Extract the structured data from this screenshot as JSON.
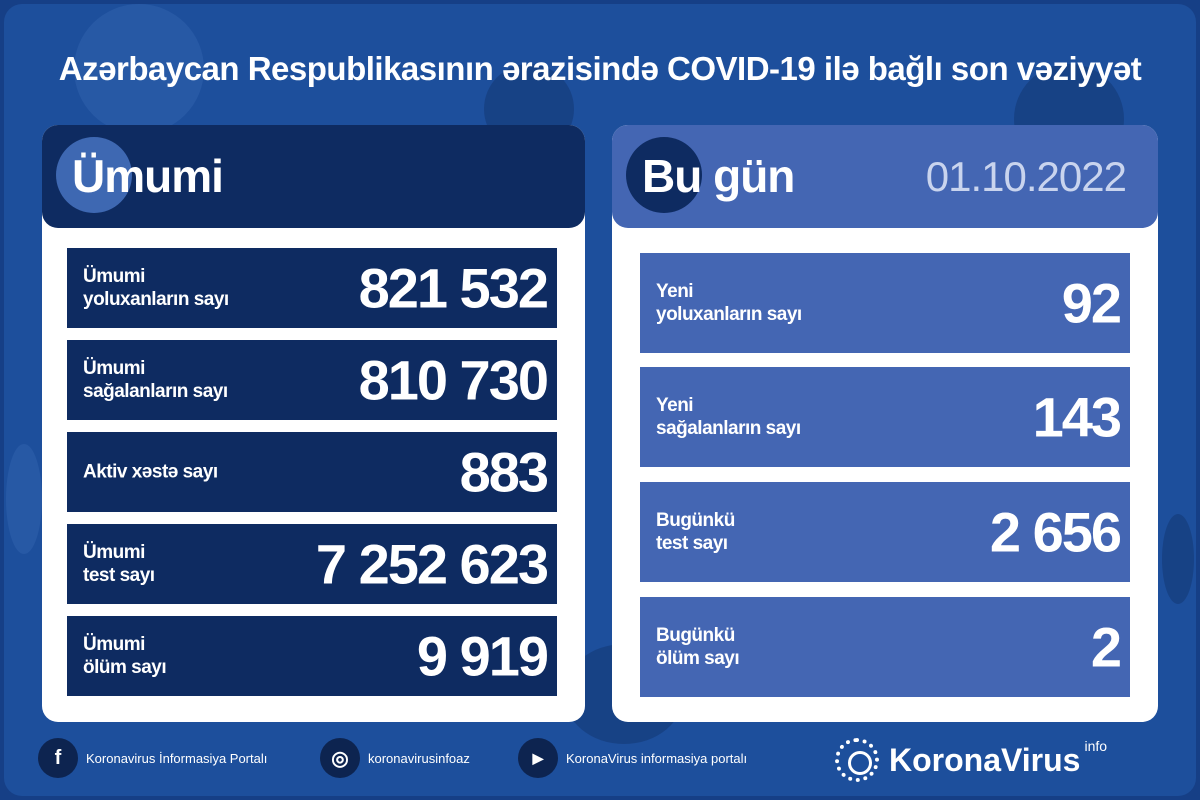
{
  "title": "Azərbaycan Respublikasının ərazisində COVID-19 ilə bağlı son vəziyyət",
  "total": {
    "heading": "Ümumi",
    "rows": [
      {
        "line1": "Ümumi",
        "line2": "yoluxanların sayı",
        "value": "821 532"
      },
      {
        "line1": "Ümumi",
        "line2": "sağalanların sayı",
        "value": "810 730"
      },
      {
        "line1": "Aktiv xəstə sayı",
        "line2": "",
        "value": "883"
      },
      {
        "line1": "Ümumi",
        "line2": "test sayı",
        "value": "7 252 623"
      },
      {
        "line1": "Ümumi",
        "line2": "ölüm sayı",
        "value": "9 919"
      }
    ]
  },
  "today": {
    "heading": "Bu gün",
    "date": "01.10.2022",
    "rows": [
      {
        "line1": "Yeni",
        "line2": "yoluxanların sayı",
        "value": "92"
      },
      {
        "line1": "Yeni",
        "line2": "sağalanların sayı",
        "value": "143"
      },
      {
        "line1": "Bugünkü",
        "line2": "test sayı",
        "value": "2 656"
      },
      {
        "line1": "Bugünkü",
        "line2": "ölüm sayı",
        "value": "2"
      }
    ]
  },
  "footer": {
    "social": [
      {
        "icon": "facebook-icon",
        "glyph": "f",
        "label": "Koronavirus İnformasiya Portalı"
      },
      {
        "icon": "instagram-icon",
        "glyph": "◎",
        "label": "koronavirusinfoaz"
      },
      {
        "icon": "youtube-icon",
        "glyph": "▶",
        "label": "KoronaVirus informasiya portalı"
      }
    ],
    "brand": "KoronaVirus",
    "brand_sup": "info"
  },
  "colors": {
    "background": "#1d4f9c",
    "navy": "#0e2b61",
    "today_blue": "#4466b3"
  }
}
